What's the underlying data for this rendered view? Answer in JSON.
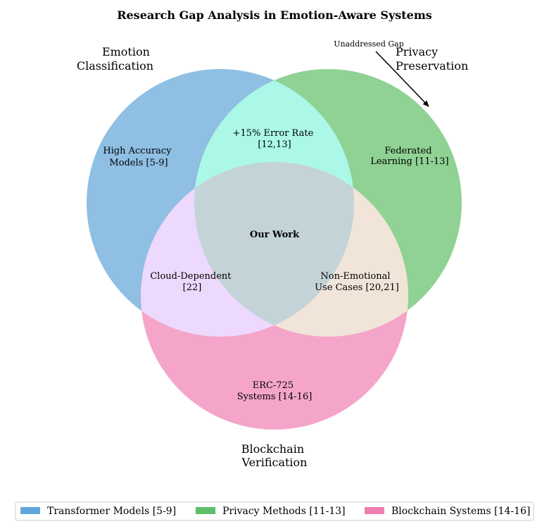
{
  "title": "Research Gap Analysis in Emotion-Aware Systems",
  "sets": [
    {
      "label_lines": [
        "Emotion",
        "Classification"
      ],
      "color": "#8fbfe3"
    },
    {
      "label_lines": [
        "Privacy",
        "Preservation"
      ],
      "color": "#8fd294"
    },
    {
      "label_lines": [
        "Blockchain",
        "Verification"
      ],
      "color": "#f5a5c9"
    }
  ],
  "regions": {
    "emotion_only": [
      "High Accuracy",
      "Models [5-9]"
    ],
    "privacy_only": [
      "Federated",
      "Learning [11-13]"
    ],
    "blockchain_only": [
      "ERC-725",
      "Systems [14-16]"
    ],
    "emotion_privacy": [
      "+15% Error Rate",
      "[12,13]"
    ],
    "emotion_blockchain": [
      "Cloud-Dependent",
      "[22]"
    ],
    "privacy_blockchain": [
      "Non-Emotional",
      "Use Cases [20,21]"
    ],
    "center": "Our Work"
  },
  "region_colors": {
    "emotion_privacy": "#abf8e8",
    "emotion_blockchain": "#edd9fd",
    "privacy_blockchain": "#f0e5d8",
    "center": "#c4d3d8"
  },
  "annotation": "Unaddressed Gap",
  "legend": [
    {
      "label": "Transformer Models [5-9]",
      "color": "#5fa6da"
    },
    {
      "label": "Privacy Methods [11-13]",
      "color": "#5fbe6a"
    },
    {
      "label": "Blockchain Systems [14-16]",
      "color": "#ef7eb0"
    }
  ]
}
